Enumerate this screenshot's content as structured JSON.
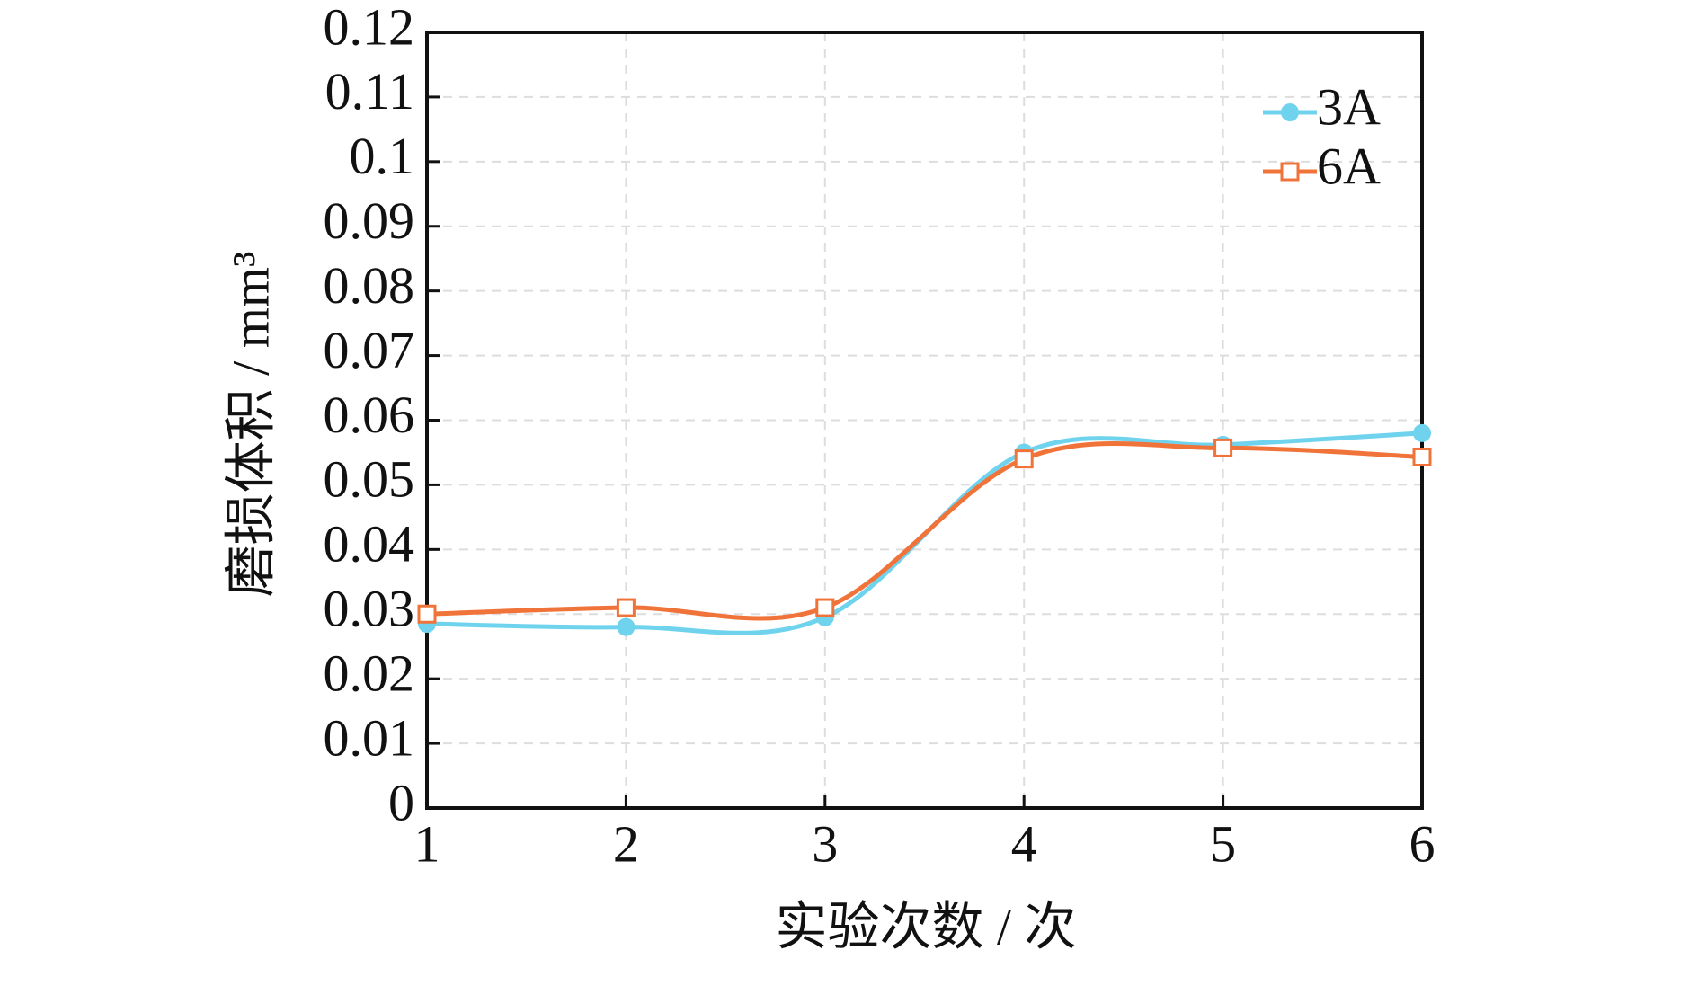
{
  "chart_data": {
    "type": "line",
    "x_label": "实验次数 / 次",
    "y_label": "磨损体积 / mm³",
    "x": [
      1,
      2,
      3,
      4,
      5,
      6
    ],
    "series": [
      {
        "name": "3A",
        "color": "#6fd3ee",
        "marker": "circle",
        "values": [
          0.0285,
          0.028,
          0.0295,
          0.055,
          0.0562,
          0.058
        ]
      },
      {
        "name": "6A",
        "color": "#f0743a",
        "marker": "square",
        "values": [
          0.03,
          0.031,
          0.031,
          0.054,
          0.0557,
          0.0543
        ]
      }
    ],
    "xlim": [
      1,
      6
    ],
    "xticks": [
      1,
      2,
      3,
      4,
      5,
      6
    ],
    "ylim": [
      0,
      0.12
    ],
    "yticks": [
      0,
      0.01,
      0.02,
      0.03,
      0.04,
      0.05,
      0.06,
      0.07,
      0.08,
      0.09,
      0.1,
      0.11,
      0.12
    ],
    "grid": true,
    "legend": "upper right"
  }
}
